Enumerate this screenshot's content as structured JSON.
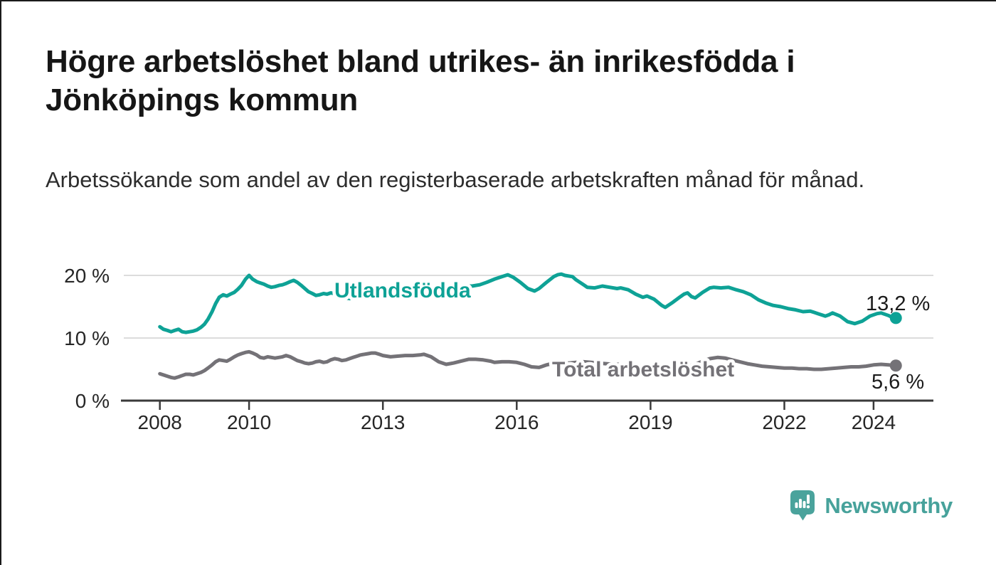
{
  "header": {
    "title": "Högre arbetslöshet bland utrikes- än inrikesfödda i Jönköpings kommun",
    "subtitle": "Arbetssökande som andel av den registerbaserade arbetskraften månad för månad."
  },
  "chart_data": {
    "type": "line",
    "unit": "%",
    "grid": true,
    "legend_position": "inline-labels",
    "x_axis": {
      "range": [
        2008,
        2024.5
      ],
      "ticks": [
        {
          "v": 2008,
          "label": "2008"
        },
        {
          "v": 2010,
          "label": "2010"
        },
        {
          "v": 2013,
          "label": "2013"
        },
        {
          "v": 2016,
          "label": "2016"
        },
        {
          "v": 2019,
          "label": "2019"
        },
        {
          "v": 2022,
          "label": "2022"
        },
        {
          "v": 2024,
          "label": "2024"
        }
      ]
    },
    "y_axis": {
      "range": [
        0,
        22.5
      ],
      "ticks": [
        {
          "v": 0,
          "label": "0 %"
        },
        {
          "v": 10,
          "label": "10 %"
        },
        {
          "v": 20,
          "label": "20 %"
        }
      ]
    },
    "series": [
      {
        "name": "Utlandsfödda",
        "color": "#0ea296",
        "end_value": 13.2,
        "end_label": "13,2 %",
        "points": [
          [
            2008.0,
            11.8
          ],
          [
            2008.08,
            11.4
          ],
          [
            2008.17,
            11.2
          ],
          [
            2008.25,
            11.0
          ],
          [
            2008.33,
            11.2
          ],
          [
            2008.42,
            11.4
          ],
          [
            2008.5,
            11.0
          ],
          [
            2008.58,
            10.9
          ],
          [
            2008.67,
            11.0
          ],
          [
            2008.75,
            11.1
          ],
          [
            2008.83,
            11.3
          ],
          [
            2008.92,
            11.7
          ],
          [
            2009.0,
            12.2
          ],
          [
            2009.08,
            13.0
          ],
          [
            2009.17,
            14.2
          ],
          [
            2009.25,
            15.5
          ],
          [
            2009.33,
            16.5
          ],
          [
            2009.42,
            16.9
          ],
          [
            2009.5,
            16.7
          ],
          [
            2009.58,
            17.0
          ],
          [
            2009.67,
            17.3
          ],
          [
            2009.75,
            17.8
          ],
          [
            2009.83,
            18.4
          ],
          [
            2009.92,
            19.4
          ],
          [
            2010.0,
            20.0
          ],
          [
            2010.08,
            19.4
          ],
          [
            2010.17,
            19.0
          ],
          [
            2010.25,
            18.8
          ],
          [
            2010.33,
            18.6
          ],
          [
            2010.42,
            18.3
          ],
          [
            2010.5,
            18.1
          ],
          [
            2010.58,
            18.2
          ],
          [
            2010.67,
            18.4
          ],
          [
            2010.75,
            18.5
          ],
          [
            2010.83,
            18.7
          ],
          [
            2010.92,
            19.0
          ],
          [
            2011.0,
            19.2
          ],
          [
            2011.08,
            18.9
          ],
          [
            2011.17,
            18.4
          ],
          [
            2011.25,
            17.9
          ],
          [
            2011.33,
            17.4
          ],
          [
            2011.42,
            17.1
          ],
          [
            2011.5,
            16.8
          ],
          [
            2011.58,
            16.9
          ],
          [
            2011.67,
            17.1
          ],
          [
            2011.75,
            17.0
          ],
          [
            2011.83,
            17.2
          ],
          [
            2011.92,
            17.1
          ],
          [
            2012.0,
            16.9
          ],
          [
            2012.08,
            16.7
          ],
          [
            2012.17,
            16.4
          ],
          [
            2012.25,
            16.3
          ],
          [
            2012.33,
            16.5
          ],
          [
            2012.42,
            16.7
          ],
          [
            2012.5,
            16.8
          ],
          [
            2012.58,
            16.6
          ],
          [
            2012.67,
            16.7
          ],
          [
            2012.75,
            16.9
          ],
          [
            2012.83,
            16.8
          ],
          [
            2012.92,
            16.7
          ],
          [
            2013.0,
            16.8
          ],
          [
            2013.17,
            17.0
          ],
          [
            2013.33,
            17.2
          ],
          [
            2013.5,
            17.0
          ],
          [
            2013.67,
            17.2
          ],
          [
            2013.83,
            17.4
          ],
          [
            2014.0,
            17.6
          ],
          [
            2014.17,
            17.9
          ],
          [
            2014.33,
            18.1
          ],
          [
            2014.5,
            18.0
          ],
          [
            2014.67,
            18.2
          ],
          [
            2014.83,
            18.3
          ],
          [
            2015.0,
            18.3
          ],
          [
            2015.17,
            18.5
          ],
          [
            2015.33,
            18.9
          ],
          [
            2015.5,
            19.4
          ],
          [
            2015.67,
            19.8
          ],
          [
            2015.8,
            20.1
          ],
          [
            2015.92,
            19.7
          ],
          [
            2016.08,
            18.9
          ],
          [
            2016.25,
            17.9
          ],
          [
            2016.4,
            17.5
          ],
          [
            2016.5,
            17.9
          ],
          [
            2016.67,
            18.9
          ],
          [
            2016.83,
            19.8
          ],
          [
            2016.92,
            20.1
          ],
          [
            2017.0,
            20.2
          ],
          [
            2017.08,
            20.0
          ],
          [
            2017.25,
            19.8
          ],
          [
            2017.33,
            19.3
          ],
          [
            2017.5,
            18.5
          ],
          [
            2017.58,
            18.1
          ],
          [
            2017.75,
            18.0
          ],
          [
            2017.92,
            18.3
          ],
          [
            2018.08,
            18.1
          ],
          [
            2018.25,
            17.9
          ],
          [
            2018.33,
            18.0
          ],
          [
            2018.5,
            17.7
          ],
          [
            2018.67,
            17.0
          ],
          [
            2018.83,
            16.5
          ],
          [
            2018.92,
            16.7
          ],
          [
            2019.08,
            16.2
          ],
          [
            2019.25,
            15.2
          ],
          [
            2019.33,
            14.9
          ],
          [
            2019.5,
            15.7
          ],
          [
            2019.67,
            16.6
          ],
          [
            2019.75,
            17.0
          ],
          [
            2019.83,
            17.2
          ],
          [
            2019.92,
            16.6
          ],
          [
            2020.0,
            16.4
          ],
          [
            2020.17,
            17.3
          ],
          [
            2020.33,
            18.0
          ],
          [
            2020.42,
            18.1
          ],
          [
            2020.58,
            18.0
          ],
          [
            2020.75,
            18.1
          ],
          [
            2020.92,
            17.7
          ],
          [
            2021.08,
            17.4
          ],
          [
            2021.25,
            16.9
          ],
          [
            2021.42,
            16.1
          ],
          [
            2021.58,
            15.6
          ],
          [
            2021.75,
            15.2
          ],
          [
            2021.92,
            15.0
          ],
          [
            2022.08,
            14.7
          ],
          [
            2022.25,
            14.5
          ],
          [
            2022.42,
            14.2
          ],
          [
            2022.58,
            14.3
          ],
          [
            2022.75,
            13.9
          ],
          [
            2022.92,
            13.5
          ],
          [
            2023.0,
            13.7
          ],
          [
            2023.08,
            14.0
          ],
          [
            2023.25,
            13.5
          ],
          [
            2023.42,
            12.6
          ],
          [
            2023.58,
            12.3
          ],
          [
            2023.75,
            12.7
          ],
          [
            2023.92,
            13.5
          ],
          [
            2024.08,
            13.9
          ],
          [
            2024.17,
            14.0
          ],
          [
            2024.33,
            13.6
          ],
          [
            2024.42,
            13.3
          ],
          [
            2024.5,
            13.2
          ]
        ]
      },
      {
        "name": "Total arbetslöshet",
        "color": "#747277",
        "end_value": 5.6,
        "end_label": "5,6 %",
        "points": [
          [
            2008.0,
            4.3
          ],
          [
            2008.08,
            4.1
          ],
          [
            2008.17,
            3.9
          ],
          [
            2008.25,
            3.7
          ],
          [
            2008.33,
            3.6
          ],
          [
            2008.42,
            3.8
          ],
          [
            2008.5,
            4.0
          ],
          [
            2008.58,
            4.2
          ],
          [
            2008.67,
            4.2
          ],
          [
            2008.75,
            4.1
          ],
          [
            2008.83,
            4.3
          ],
          [
            2008.92,
            4.5
          ],
          [
            2009.0,
            4.8
          ],
          [
            2009.08,
            5.2
          ],
          [
            2009.17,
            5.7
          ],
          [
            2009.25,
            6.2
          ],
          [
            2009.33,
            6.5
          ],
          [
            2009.42,
            6.4
          ],
          [
            2009.5,
            6.3
          ],
          [
            2009.58,
            6.6
          ],
          [
            2009.67,
            7.0
          ],
          [
            2009.75,
            7.3
          ],
          [
            2009.83,
            7.5
          ],
          [
            2009.92,
            7.7
          ],
          [
            2010.0,
            7.8
          ],
          [
            2010.08,
            7.6
          ],
          [
            2010.17,
            7.3
          ],
          [
            2010.25,
            6.9
          ],
          [
            2010.33,
            6.8
          ],
          [
            2010.42,
            7.0
          ],
          [
            2010.5,
            6.9
          ],
          [
            2010.58,
            6.8
          ],
          [
            2010.67,
            6.9
          ],
          [
            2010.75,
            7.0
          ],
          [
            2010.83,
            7.2
          ],
          [
            2010.92,
            7.0
          ],
          [
            2011.0,
            6.7
          ],
          [
            2011.08,
            6.4
          ],
          [
            2011.17,
            6.2
          ],
          [
            2011.25,
            6.0
          ],
          [
            2011.33,
            5.9
          ],
          [
            2011.42,
            6.0
          ],
          [
            2011.5,
            6.2
          ],
          [
            2011.58,
            6.3
          ],
          [
            2011.67,
            6.1
          ],
          [
            2011.75,
            6.2
          ],
          [
            2011.83,
            6.5
          ],
          [
            2011.92,
            6.7
          ],
          [
            2012.0,
            6.6
          ],
          [
            2012.08,
            6.4
          ],
          [
            2012.17,
            6.5
          ],
          [
            2012.25,
            6.7
          ],
          [
            2012.33,
            6.9
          ],
          [
            2012.42,
            7.1
          ],
          [
            2012.5,
            7.3
          ],
          [
            2012.58,
            7.4
          ],
          [
            2012.67,
            7.5
          ],
          [
            2012.75,
            7.6
          ],
          [
            2012.83,
            7.6
          ],
          [
            2012.92,
            7.4
          ],
          [
            2013.0,
            7.2
          ],
          [
            2013.17,
            7.0
          ],
          [
            2013.33,
            7.1
          ],
          [
            2013.5,
            7.2
          ],
          [
            2013.67,
            7.2
          ],
          [
            2013.83,
            7.3
          ],
          [
            2013.92,
            7.4
          ],
          [
            2014.08,
            7.0
          ],
          [
            2014.25,
            6.2
          ],
          [
            2014.42,
            5.8
          ],
          [
            2014.58,
            6.0
          ],
          [
            2014.75,
            6.3
          ],
          [
            2014.92,
            6.6
          ],
          [
            2015.08,
            6.6
          ],
          [
            2015.25,
            6.5
          ],
          [
            2015.42,
            6.3
          ],
          [
            2015.5,
            6.1
          ],
          [
            2015.67,
            6.2
          ],
          [
            2015.83,
            6.2
          ],
          [
            2016.0,
            6.1
          ],
          [
            2016.17,
            5.8
          ],
          [
            2016.33,
            5.4
          ],
          [
            2016.5,
            5.3
          ],
          [
            2016.67,
            5.7
          ],
          [
            2016.83,
            6.0
          ],
          [
            2017.0,
            6.1
          ],
          [
            2017.17,
            6.0
          ],
          [
            2017.33,
            6.1
          ],
          [
            2017.5,
            6.2
          ],
          [
            2017.67,
            6.1
          ],
          [
            2017.83,
            6.0
          ],
          [
            2018.0,
            5.9
          ],
          [
            2018.17,
            5.8
          ],
          [
            2018.33,
            5.8
          ],
          [
            2018.5,
            5.7
          ],
          [
            2018.67,
            5.6
          ],
          [
            2018.83,
            5.5
          ],
          [
            2019.0,
            5.4
          ],
          [
            2019.17,
            5.3
          ],
          [
            2019.33,
            5.2
          ],
          [
            2019.5,
            5.2
          ],
          [
            2019.67,
            5.3
          ],
          [
            2019.83,
            5.5
          ],
          [
            2020.0,
            5.8
          ],
          [
            2020.17,
            6.3
          ],
          [
            2020.33,
            6.7
          ],
          [
            2020.5,
            6.9
          ],
          [
            2020.67,
            6.8
          ],
          [
            2020.83,
            6.5
          ],
          [
            2021.0,
            6.2
          ],
          [
            2021.17,
            5.9
          ],
          [
            2021.33,
            5.7
          ],
          [
            2021.5,
            5.5
          ],
          [
            2021.67,
            5.4
          ],
          [
            2021.83,
            5.3
          ],
          [
            2022.0,
            5.2
          ],
          [
            2022.17,
            5.2
          ],
          [
            2022.33,
            5.1
          ],
          [
            2022.5,
            5.1
          ],
          [
            2022.67,
            5.0
          ],
          [
            2022.83,
            5.0
          ],
          [
            2023.0,
            5.1
          ],
          [
            2023.17,
            5.2
          ],
          [
            2023.33,
            5.3
          ],
          [
            2023.5,
            5.4
          ],
          [
            2023.67,
            5.4
          ],
          [
            2023.83,
            5.5
          ],
          [
            2024.0,
            5.7
          ],
          [
            2024.17,
            5.8
          ],
          [
            2024.33,
            5.7
          ],
          [
            2024.5,
            5.6
          ]
        ]
      }
    ],
    "colors": {
      "axis": "#3a3a3a",
      "gridline": "#dcdcdc",
      "tick_text": "#262626",
      "annotation_text": "#1b1b1b"
    }
  },
  "footer": {
    "brand": "Newsworthy",
    "brand_color": "#47a29b",
    "icon_color": "#4aa39c"
  }
}
